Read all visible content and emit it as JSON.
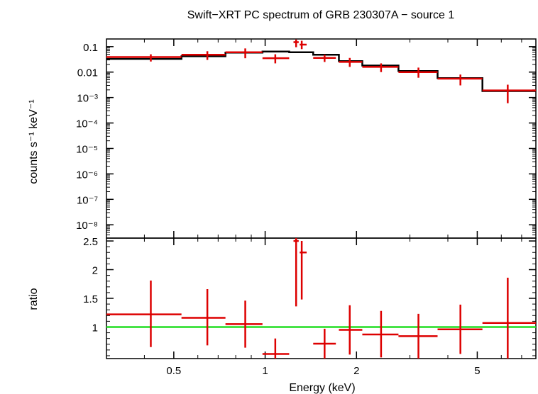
{
  "chart_data": {
    "type": "scatter",
    "title": "Swift−XRT PC spectrum of GRB 230307A − source 1",
    "xlabel": "Energy (keV)",
    "x_scale": "log",
    "xlim": [
      0.3,
      7.8
    ],
    "x_ticks": [
      "0.5",
      "1",
      "2",
      "5"
    ],
    "x_tick_values": [
      0.5,
      1,
      2,
      5
    ],
    "panels": [
      {
        "name": "spectrum",
        "ylabel": "counts s⁻¹ keV⁻¹",
        "y_scale": "log",
        "ylim": [
          3e-09,
          0.2
        ],
        "y_ticks": [
          "0.1",
          "0.01",
          "10⁻³",
          "10⁻⁴",
          "10⁻⁵",
          "10⁻⁶",
          "10⁻⁷",
          "10⁻⁸"
        ],
        "y_tick_values": [
          0.1,
          0.01,
          0.001,
          0.0001,
          1e-05,
          1e-06,
          1e-07,
          1e-08
        ],
        "data": {
          "name": "data",
          "color": "#dd0000",
          "points": [
            {
              "x": 0.42,
              "xlo": 0.3,
              "xhi": 0.53,
              "y": 0.039,
              "ylo": 0.026,
              "yhi": 0.05
            },
            {
              "x": 0.645,
              "xlo": 0.53,
              "xhi": 0.74,
              "y": 0.048,
              "ylo": 0.03,
              "yhi": 0.066
            },
            {
              "x": 0.86,
              "xlo": 0.74,
              "xhi": 0.98,
              "y": 0.06,
              "ylo": 0.035,
              "yhi": 0.085
            },
            {
              "x": 1.08,
              "xlo": 0.98,
              "xhi": 1.2,
              "y": 0.035,
              "ylo": 0.022,
              "yhi": 0.05
            },
            {
              "x": 1.265,
              "xlo": 1.24,
              "xhi": 1.29,
              "y": 0.15,
              "ylo": 0.095,
              "yhi": 0.19
            },
            {
              "x": 1.32,
              "xlo": 1.3,
              "xhi": 1.37,
              "y": 0.12,
              "ylo": 0.08,
              "yhi": 0.17
            },
            {
              "x": 1.57,
              "xlo": 1.44,
              "xhi": 1.71,
              "y": 0.036,
              "ylo": 0.025,
              "yhi": 0.048
            },
            {
              "x": 1.9,
              "xlo": 1.75,
              "xhi": 2.09,
              "y": 0.025,
              "ylo": 0.016,
              "yhi": 0.036
            },
            {
              "x": 2.41,
              "xlo": 2.09,
              "xhi": 2.75,
              "y": 0.016,
              "ylo": 0.01,
              "yhi": 0.022
            },
            {
              "x": 3.2,
              "xlo": 2.75,
              "xhi": 3.7,
              "y": 0.01,
              "ylo": 0.006,
              "yhi": 0.015
            },
            {
              "x": 4.4,
              "xlo": 3.7,
              "xhi": 5.2,
              "y": 0.0055,
              "ylo": 0.003,
              "yhi": 0.008
            },
            {
              "x": 6.3,
              "xlo": 5.2,
              "xhi": 7.8,
              "y": 0.0019,
              "ylo": 0.0006,
              "yhi": 0.0032
            }
          ]
        },
        "model": {
          "name": "model",
          "color": "#000000",
          "steps": [
            {
              "xlo": 0.3,
              "xhi": 0.53,
              "y": 0.033
            },
            {
              "xlo": 0.53,
              "xhi": 0.74,
              "y": 0.042
            },
            {
              "xlo": 0.74,
              "xhi": 0.98,
              "y": 0.058
            },
            {
              "xlo": 0.98,
              "xhi": 1.2,
              "y": 0.064
            },
            {
              "xlo": 1.2,
              "xhi": 1.44,
              "y": 0.06
            },
            {
              "xlo": 1.44,
              "xhi": 1.75,
              "y": 0.048
            },
            {
              "xlo": 1.75,
              "xhi": 2.09,
              "y": 0.027
            },
            {
              "xlo": 2.09,
              "xhi": 2.75,
              "y": 0.018
            },
            {
              "xlo": 2.75,
              "xhi": 3.7,
              "y": 0.011
            },
            {
              "xlo": 3.7,
              "xhi": 5.2,
              "y": 0.0058
            },
            {
              "xlo": 5.2,
              "xhi": 7.8,
              "y": 0.0018
            }
          ]
        }
      },
      {
        "name": "ratio",
        "ylabel": "ratio",
        "y_scale": "linear",
        "ylim": [
          0.45,
          2.55
        ],
        "y_ticks": [
          "1",
          "1.5",
          "2",
          "2.5"
        ],
        "y_tick_values": [
          1,
          1.5,
          2,
          2.5
        ],
        "reference_line": {
          "y": 1,
          "color": "#22dd22"
        },
        "data": {
          "name": "ratio",
          "color": "#dd0000",
          "points": [
            {
              "x": 0.42,
              "xlo": 0.3,
              "xhi": 0.53,
              "y": 1.22,
              "ylo": 0.65,
              "yhi": 1.81
            },
            {
              "x": 0.645,
              "xlo": 0.53,
              "xhi": 0.74,
              "y": 1.16,
              "ylo": 0.68,
              "yhi": 1.66
            },
            {
              "x": 0.86,
              "xlo": 0.74,
              "xhi": 0.98,
              "y": 1.05,
              "ylo": 0.64,
              "yhi": 1.46
            },
            {
              "x": 1.08,
              "xlo": 0.98,
              "xhi": 1.2,
              "y": 0.53,
              "ylo": 0.45,
              "yhi": 0.8
            },
            {
              "x": 1.265,
              "xlo": 1.24,
              "xhi": 1.29,
              "y": 2.5,
              "ylo": 1.36,
              "yhi": 2.55
            },
            {
              "x": 1.32,
              "xlo": 1.3,
              "xhi": 1.37,
              "y": 2.3,
              "ylo": 1.48,
              "yhi": 2.5
            },
            {
              "x": 1.57,
              "xlo": 1.44,
              "xhi": 1.71,
              "y": 0.71,
              "ylo": 0.45,
              "yhi": 0.97
            },
            {
              "x": 1.9,
              "xlo": 1.75,
              "xhi": 2.09,
              "y": 0.95,
              "ylo": 0.52,
              "yhi": 1.38
            },
            {
              "x": 2.41,
              "xlo": 2.09,
              "xhi": 2.75,
              "y": 0.87,
              "ylo": 0.47,
              "yhi": 1.28
            },
            {
              "x": 3.2,
              "xlo": 2.75,
              "xhi": 3.7,
              "y": 0.84,
              "ylo": 0.45,
              "yhi": 1.23
            },
            {
              "x": 4.4,
              "xlo": 3.7,
              "xhi": 5.2,
              "y": 0.96,
              "ylo": 0.53,
              "yhi": 1.39
            },
            {
              "x": 6.3,
              "xlo": 5.2,
              "xhi": 7.8,
              "y": 1.07,
              "ylo": 0.45,
              "yhi": 1.86
            }
          ]
        }
      }
    ]
  }
}
